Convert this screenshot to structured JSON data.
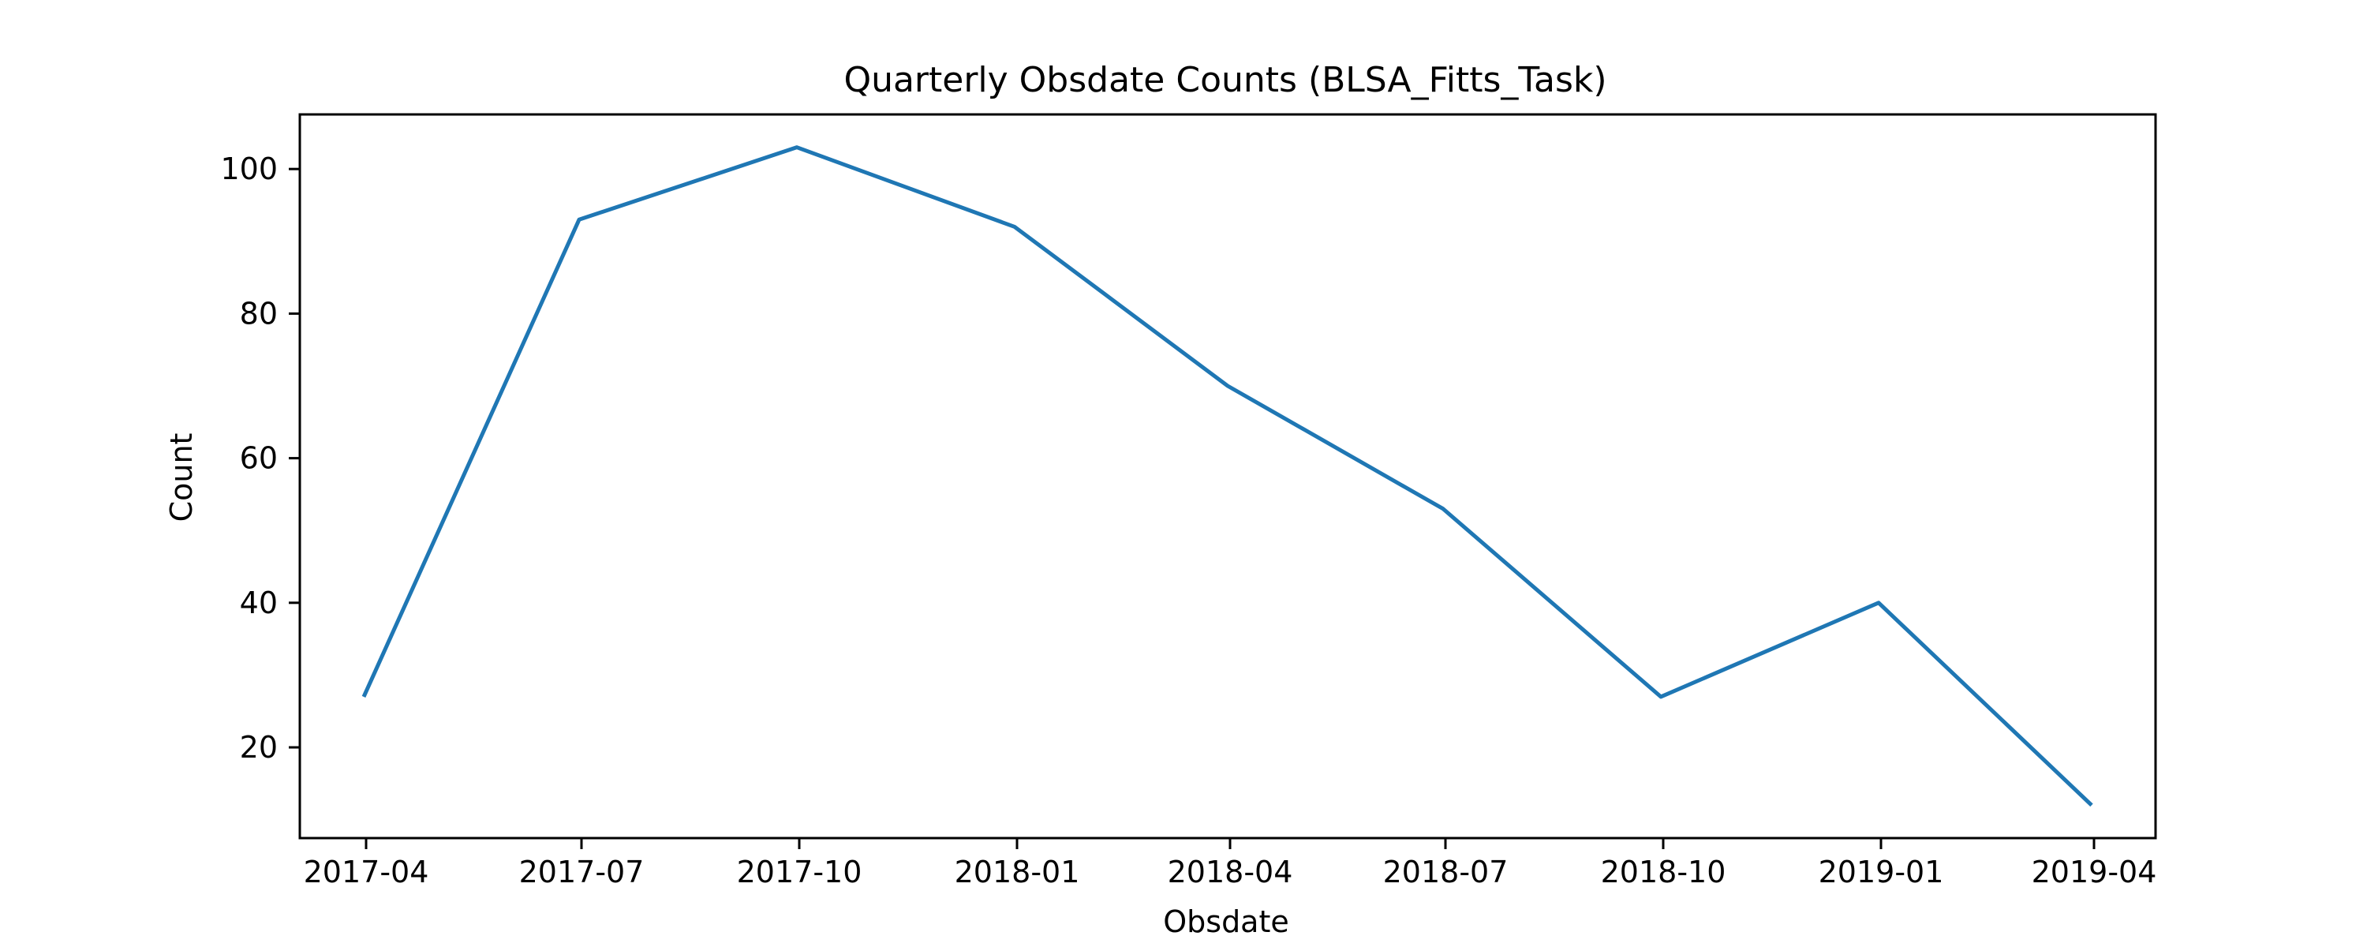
{
  "chart_data": {
    "type": "line",
    "title": "Quarterly Obsdate Counts (BLSA_Fitts_Task)",
    "xlabel": "Obsdate",
    "ylabel": "Count",
    "x": [
      "2017-03-31",
      "2017-06-30",
      "2017-09-30",
      "2017-12-31",
      "2018-03-31",
      "2018-06-30",
      "2018-09-30",
      "2018-12-31",
      "2019-03-31"
    ],
    "series": [
      {
        "values": [
          27,
          93,
          103,
          92,
          70,
          53,
          27,
          40,
          12
        ],
        "color": "#1f77b4"
      }
    ],
    "x_ticks": [
      {
        "date": "2017-04-01",
        "label": "2017-04"
      },
      {
        "date": "2017-07-01",
        "label": "2017-07"
      },
      {
        "date": "2017-10-01",
        "label": "2017-10"
      },
      {
        "date": "2018-01-01",
        "label": "2018-01"
      },
      {
        "date": "2018-04-01",
        "label": "2018-04"
      },
      {
        "date": "2018-07-01",
        "label": "2018-07"
      },
      {
        "date": "2018-10-01",
        "label": "2018-10"
      },
      {
        "date": "2019-01-01",
        "label": "2019-01"
      },
      {
        "date": "2019-04-01",
        "label": "2019-04"
      }
    ],
    "y_ticks": [
      20,
      40,
      60,
      80,
      100
    ],
    "xlim": [
      "2017-03-04",
      "2019-04-27"
    ],
    "ylim": [
      7.45,
      107.55
    ],
    "grid": false,
    "legend": "none"
  }
}
